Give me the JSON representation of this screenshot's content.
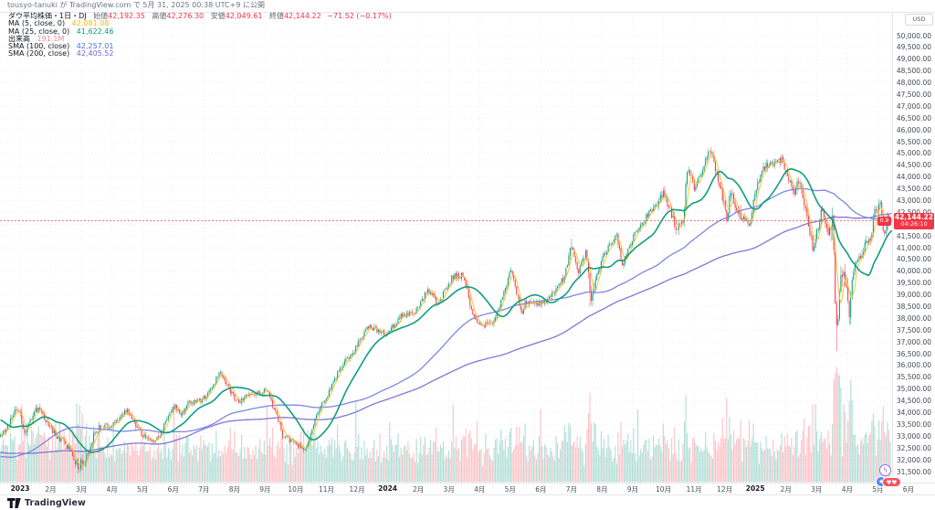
{
  "header": {
    "publish_line": "tousyo-tanuki が TradingView.com で 5月 31, 2025 00:38 UTC+9 に公開"
  },
  "legend": {
    "title": "ダウ平均株価・1日・DJ",
    "open_label": "始値",
    "open": "42,192.35",
    "high_label": "高値",
    "high": "42,276.30",
    "low_label": "安値",
    "low": "42,049.61",
    "close_label": "終値",
    "close": "42,144.22",
    "change": "−71.52 (−0.17%)",
    "rows": [
      {
        "label": "MA (5, close, 0)",
        "value": "42,081.08",
        "color": "#f0b90b"
      },
      {
        "label": "MA (25, close, 0)",
        "value": "41,622.46",
        "color": "#089981"
      },
      {
        "label": "出来高",
        "value": "191.1M",
        "color": "#f28a93"
      },
      {
        "label": "SMA (100, close)",
        "value": "42,257.01",
        "color": "#4a6fdc"
      },
      {
        "label": "SMA (200, close)",
        "value": "42,405.52",
        "color": "#7a5fd6"
      }
    ]
  },
  "price_axis": {
    "currency": "USD",
    "min": 31500,
    "max": 50000,
    "step": 500
  },
  "last_price": {
    "value": "42,144.22",
    "countdown": "04:26:10",
    "mini_badge": "0.9",
    "numeric": 42144.22
  },
  "time_axis": {
    "labels": [
      "2023",
      "2月",
      "3月",
      "4月",
      "5月",
      "6月",
      "7月",
      "8月",
      "9月",
      "10月",
      "11月",
      "12月",
      "2024",
      "2月",
      "3月",
      "4月",
      "5月",
      "6月",
      "7月",
      "8月",
      "9月",
      "10月",
      "11月",
      "12月",
      "2025",
      "2月",
      "3月",
      "4月",
      "5月",
      "6月"
    ]
  },
  "footer": {
    "brand": "TradingView"
  },
  "reactions": {
    "lightning": "ϟ",
    "star": "★",
    "heart": "♥♥"
  },
  "chart_data": {
    "type": "candlestick",
    "symbol": "ダウ平均株価",
    "exchange": "DJ",
    "interval": "1日",
    "title": "ダウ平均株価・1日・DJ",
    "ylabel": "USD",
    "ylim": [
      31500,
      50000
    ],
    "grid": true,
    "x_range": [
      "2023-01",
      "2025-06"
    ],
    "last_ohlc": {
      "open": 42192.35,
      "high": 42276.3,
      "low": 42049.61,
      "close": 42144.22,
      "change": -71.52,
      "change_pct": -0.17
    },
    "last_volume_m": 191.1,
    "overlays": [
      {
        "name": "MA5",
        "window": 5,
        "color": "#f5c433",
        "width": 1.0
      },
      {
        "name": "MA25",
        "window": 25,
        "color": "#0f9d80",
        "width": 1.6
      },
      {
        "name": "SMA100",
        "window": 100,
        "color": "#7b88e0",
        "width": 1.3
      },
      {
        "name": "SMA200",
        "window": 200,
        "color": "#8673d6",
        "width": 1.3
      }
    ],
    "colors": {
      "up": "#089981",
      "down": "#f23645",
      "vol_up": "rgba(8,153,129,0.32)",
      "vol_down": "rgba(242,54,69,0.30)",
      "grid": "#aab0bb",
      "last_line": "#f23645"
    },
    "close_anchors_pre": [
      [
        -9.35,
        34700
      ],
      [
        -9,
        34100
      ],
      [
        -8,
        32977
      ],
      [
        -7.5,
        31800
      ],
      [
        -7,
        32990
      ],
      [
        -6.3,
        30450
      ],
      [
        -6,
        30775
      ],
      [
        -5,
        32845
      ],
      [
        -4.5,
        34100
      ],
      [
        -4,
        31510
      ],
      [
        -3,
        28726
      ],
      [
        -2,
        32733
      ],
      [
        -1,
        34590
      ],
      [
        -0.35,
        32900
      ]
    ],
    "close_anchors": [
      [
        0,
        33147
      ],
      [
        0.45,
        34302
      ],
      [
        0.65,
        33045
      ],
      [
        1.0,
        34086
      ],
      [
        1.05,
        34200
      ],
      [
        1.8,
        32889
      ],
      [
        2.0,
        32656
      ],
      [
        2.4,
        31819
      ],
      [
        2.6,
        31900
      ],
      [
        3.0,
        33274
      ],
      [
        3.5,
        33480
      ],
      [
        4.0,
        34098
      ],
      [
        4.5,
        33060
      ],
      [
        4.85,
        32765
      ],
      [
        5.0,
        32908
      ],
      [
        5.55,
        34299
      ],
      [
        5.8,
        33950
      ],
      [
        6.0,
        34408
      ],
      [
        6.5,
        34585
      ],
      [
        7.0,
        35559
      ],
      [
        7.05,
        35630
      ],
      [
        7.6,
        34501
      ],
      [
        8.0,
        34722
      ],
      [
        8.6,
        34900
      ],
      [
        9.0,
        33508
      ],
      [
        9.1,
        33002
      ],
      [
        9.85,
        32417
      ],
      [
        10.0,
        33053
      ],
      [
        10.25,
        34061
      ],
      [
        10.65,
        34991
      ],
      [
        11.0,
        35951
      ],
      [
        11.4,
        36578
      ],
      [
        11.9,
        37710
      ],
      [
        12.0,
        37690
      ],
      [
        12.2,
        37430
      ],
      [
        12.5,
        37300
      ],
      [
        13.0,
        38150
      ],
      [
        13.45,
        38273
      ],
      [
        13.8,
        39132
      ],
      [
        14.0,
        38996
      ],
      [
        14.15,
        38585
      ],
      [
        14.65,
        39781
      ],
      [
        15.0,
        39807
      ],
      [
        15.35,
        37983
      ],
      [
        15.6,
        37753
      ],
      [
        16.0,
        37815
      ],
      [
        16.55,
        40004
      ],
      [
        16.95,
        38111
      ],
      [
        17.0,
        38686
      ],
      [
        17.45,
        38589
      ],
      [
        18.0,
        39119
      ],
      [
        18.3,
        39754
      ],
      [
        18.55,
        41198
      ],
      [
        18.75,
        39935
      ],
      [
        19.0,
        40843
      ],
      [
        19.1,
        39737
      ],
      [
        19.15,
        38703
      ],
      [
        19.55,
        40659
      ],
      [
        20.0,
        41563
      ],
      [
        20.2,
        40345
      ],
      [
        20.6,
        41622
      ],
      [
        21.0,
        42330
      ],
      [
        21.55,
        43275
      ],
      [
        22.0,
        41763
      ],
      [
        22.2,
        42222
      ],
      [
        22.26,
        43730
      ],
      [
        22.37,
        44294
      ],
      [
        22.55,
        43445
      ],
      [
        23.0,
        44911
      ],
      [
        23.13,
        45014
      ],
      [
        23.6,
        42327
      ],
      [
        23.75,
        43297
      ],
      [
        24.0,
        42544
      ],
      [
        24.35,
        41938
      ],
      [
        24.55,
        43488
      ],
      [
        24.8,
        44424
      ],
      [
        25.0,
        44545
      ],
      [
        25.4,
        44746
      ],
      [
        25.8,
        43239
      ],
      [
        26.0,
        43841
      ],
      [
        26.2,
        42521
      ],
      [
        26.45,
        40814
      ],
      [
        26.7,
        42587
      ],
      [
        26.95,
        41584
      ],
      [
        27.0,
        42001
      ],
      [
        27.08,
        42225
      ],
      [
        27.12,
        40546
      ],
      [
        27.16,
        38315
      ],
      [
        27.22,
        37966
      ],
      [
        27.26,
        37646
      ],
      [
        27.3,
        39608
      ],
      [
        27.34,
        39594
      ],
      [
        27.4,
        40213
      ],
      [
        27.6,
        38170
      ],
      [
        27.75,
        40093
      ],
      [
        28.0,
        40669
      ],
      [
        28.15,
        41218
      ],
      [
        28.3,
        41249
      ],
      [
        28.42,
        42410
      ],
      [
        28.55,
        42655
      ],
      [
        28.65,
        42792
      ],
      [
        28.7,
        41860
      ],
      [
        28.8,
        41603
      ],
      [
        28.88,
        42343
      ],
      [
        29.0,
        42144.22
      ]
    ],
    "volatility_windows": [
      [
        0,
        3.1,
        1.35
      ],
      [
        2.2,
        2.7,
        2.0
      ],
      [
        19.05,
        19.3,
        2.0
      ],
      [
        21.2,
        22.6,
        1.3
      ],
      [
        23.4,
        24.1,
        1.6
      ],
      [
        25.9,
        26.6,
        1.6
      ],
      [
        27.0,
        27.75,
        2.8
      ],
      [
        28.0,
        29.0,
        1.4
      ]
    ],
    "volume_spikes_m": [
      [
        0.9,
        480
      ],
      [
        2.35,
        620
      ],
      [
        2.45,
        690
      ],
      [
        2.55,
        560
      ],
      [
        3.55,
        480
      ],
      [
        5.55,
        650
      ],
      [
        8.6,
        600
      ],
      [
        9.8,
        460
      ],
      [
        11.5,
        660
      ],
      [
        12.6,
        480
      ],
      [
        14.65,
        610
      ],
      [
        15.45,
        520
      ],
      [
        16.55,
        480
      ],
      [
        17.5,
        620
      ],
      [
        18.3,
        470
      ],
      [
        19.15,
        570
      ],
      [
        20.7,
        650
      ],
      [
        21.55,
        500
      ],
      [
        22.26,
        560
      ],
      [
        23.6,
        700
      ],
      [
        24.35,
        520
      ],
      [
        25.4,
        450
      ],
      [
        26.5,
        650
      ],
      [
        27.12,
        700
      ],
      [
        27.16,
        800
      ],
      [
        27.22,
        1000
      ],
      [
        27.26,
        930
      ],
      [
        27.3,
        880
      ],
      [
        27.34,
        760
      ],
      [
        27.45,
        650
      ],
      [
        27.6,
        620
      ],
      [
        28.42,
        560
      ],
      [
        28.7,
        480
      ]
    ],
    "low_overrides": [
      [
        2.4,
        31429
      ],
      [
        19.15,
        38499
      ],
      [
        27.22,
        36611
      ]
    ],
    "high_overrides": [
      [
        18.55,
        41376
      ],
      [
        23.13,
        45074
      ]
    ]
  }
}
